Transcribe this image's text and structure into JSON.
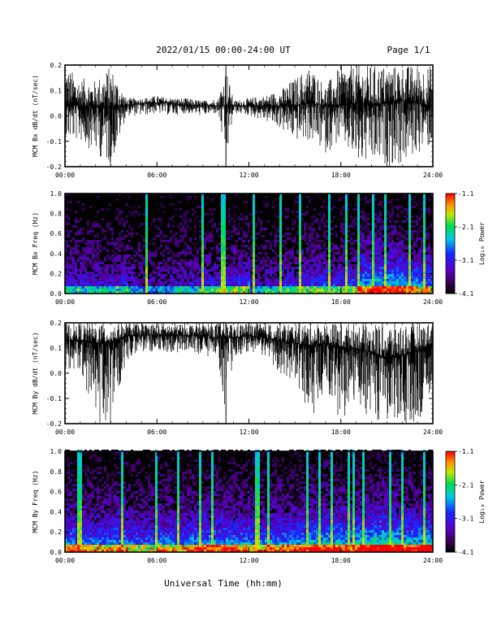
{
  "header": {
    "title": "2022/01/15  00:00-24:00 UT",
    "page": "Page 1/1"
  },
  "xaxis": {
    "label": "Universal Time (hh:mm)",
    "ticks": [
      "00:00",
      "06:00",
      "12:00",
      "18:00",
      "24:00"
    ],
    "range_hours": [
      0,
      24
    ]
  },
  "colorbar": {
    "label": "Log₁₀ Power",
    "ticks": [
      "-1.1",
      "-2.1",
      "-3.1",
      "-4.1"
    ],
    "range": [
      -4.1,
      -1.1
    ]
  },
  "chart_data": [
    {
      "type": "line",
      "ylabel": "MCM Bx dB/dt (nT/sec)",
      "ylim": [
        -0.2,
        0.2
      ],
      "yticks": [
        "0.2",
        "0.1",
        "0.0",
        "-0.1",
        "-0.2"
      ],
      "x": [
        0,
        1,
        2,
        3,
        4,
        5,
        6,
        7,
        8,
        9,
        10,
        10.5,
        11,
        12,
        13,
        14,
        15,
        16,
        17,
        18,
        19,
        20,
        21,
        22,
        23,
        24
      ],
      "envelope_upper": [
        0.2,
        0.15,
        0.14,
        0.2,
        0.07,
        0.07,
        0.08,
        0.07,
        0.07,
        0.06,
        0.07,
        0.2,
        0.06,
        0.07,
        0.08,
        0.1,
        0.15,
        0.2,
        0.12,
        0.2,
        0.2,
        0.2,
        0.2,
        0.2,
        0.2,
        0.2
      ],
      "envelope_lower": [
        -0.1,
        -0.1,
        -0.15,
        -0.2,
        0.0,
        0.0,
        0.01,
        0.0,
        0.01,
        0.0,
        0.01,
        -0.2,
        0.01,
        0.0,
        -0.02,
        -0.05,
        -0.1,
        -0.1,
        -0.15,
        -0.1,
        -0.2,
        -0.2,
        -0.2,
        -0.2,
        -0.15,
        -0.12
      ],
      "mean": [
        0.05,
        0.04,
        0.04,
        0.03,
        0.04,
        0.05,
        0.05,
        0.05,
        0.04,
        0.04,
        0.04,
        0.04,
        0.04,
        0.04,
        0.04,
        0.04,
        0.04,
        0.05,
        0.04,
        0.04,
        0.05,
        0.04,
        0.05,
        0.06,
        0.05,
        0.04
      ]
    },
    {
      "type": "heatmap",
      "ylabel": "MCM Bx Freq (Hz)",
      "ylim": [
        0.0,
        1.0
      ],
      "yticks": [
        "1.0",
        "0.8",
        "0.6",
        "0.4",
        "0.2",
        "0.0"
      ],
      "activity_by_hour": [
        0.45,
        0.4,
        0.4,
        0.45,
        0.35,
        0.3,
        0.35,
        0.4,
        0.4,
        0.45,
        0.5,
        0.55,
        0.35,
        0.4,
        0.45,
        0.5,
        0.55,
        0.5,
        0.55,
        0.75,
        0.8,
        0.8,
        0.7,
        0.65
      ],
      "bright_streaks_hours": [
        5.2,
        8.9,
        10.4,
        12.3,
        14.0,
        15.3,
        17.1,
        19.1,
        20.1,
        20.8,
        22.4,
        23.4
      ]
    },
    {
      "type": "line",
      "ylabel": "MCM By dB/dt (nT/sec)",
      "ylim": [
        -0.2,
        0.2
      ],
      "yticks": [
        "0.2",
        "0.1",
        "0.0",
        "-0.1",
        "-0.2"
      ],
      "x": [
        0,
        1,
        2,
        3,
        4,
        5,
        6,
        7,
        8,
        9,
        10,
        10.5,
        11,
        12,
        13,
        14,
        15,
        16,
        17,
        18,
        19,
        20,
        21,
        22,
        23,
        24
      ],
      "envelope_upper": [
        0.2,
        0.2,
        0.2,
        0.2,
        0.2,
        0.2,
        0.2,
        0.2,
        0.2,
        0.2,
        0.2,
        0.2,
        0.2,
        0.2,
        0.2,
        0.2,
        0.2,
        0.2,
        0.2,
        0.2,
        0.2,
        0.2,
        0.2,
        0.2,
        0.2,
        0.2
      ],
      "envelope_lower": [
        0.0,
        0.02,
        -0.2,
        -0.2,
        0.05,
        0.08,
        0.08,
        0.08,
        0.08,
        0.07,
        0.06,
        -0.2,
        0.07,
        0.08,
        0.05,
        0.0,
        -0.03,
        -0.2,
        -0.05,
        -0.2,
        -0.1,
        -0.2,
        -0.2,
        -0.2,
        -0.2,
        -0.05
      ],
      "mean": [
        0.13,
        0.13,
        0.12,
        0.12,
        0.15,
        0.15,
        0.15,
        0.15,
        0.15,
        0.15,
        0.14,
        0.14,
        0.14,
        0.15,
        0.14,
        0.13,
        0.12,
        0.11,
        0.12,
        0.1,
        0.1,
        0.08,
        0.06,
        0.07,
        0.09,
        0.12
      ]
    },
    {
      "type": "heatmap",
      "ylabel": "MCM By Freq (Hz)",
      "ylim": [
        0.0,
        1.0
      ],
      "yticks": [
        "1.0",
        "0.8",
        "0.6",
        "0.4",
        "0.2",
        "0.0"
      ],
      "activity_by_hour": [
        0.7,
        0.65,
        0.65,
        0.7,
        0.6,
        0.6,
        0.65,
        0.65,
        0.7,
        0.7,
        0.7,
        0.7,
        0.65,
        0.7,
        0.7,
        0.75,
        0.8,
        0.8,
        0.75,
        0.85,
        0.9,
        0.85,
        0.8,
        0.8
      ],
      "bright_streaks_hours": [
        1.0,
        3.7,
        5.9,
        8.7,
        9.6,
        12.5,
        15.8,
        16.5,
        17.3,
        19.4,
        21.1,
        22.0,
        23.4
      ]
    }
  ]
}
